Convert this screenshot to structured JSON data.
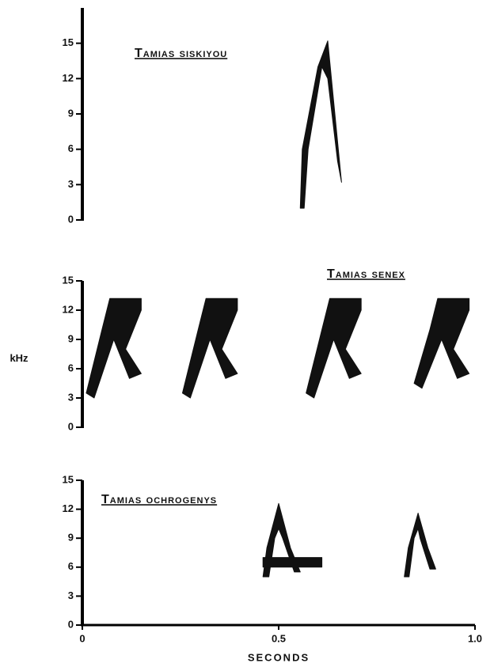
{
  "chart_data": [
    {
      "type": "spectrogram",
      "title": "Tamias siskiyou",
      "ylim": [
        0,
        18
      ],
      "yticks": [
        0,
        3,
        6,
        9,
        12,
        15
      ],
      "color": "#111111",
      "calls": [
        {
          "x": [
            0.555,
            0.56,
            0.6,
            0.625,
            0.66,
            0.65,
            0.625,
            0.61,
            0.575,
            0.565
          ],
          "y": [
            1,
            6,
            13,
            15.2,
            3.2,
            5,
            12,
            13,
            6,
            1
          ]
        }
      ]
    },
    {
      "type": "spectrogram",
      "title": "Tamias senex",
      "ylabel": "kHz",
      "ylim": [
        0,
        15
      ],
      "yticks": [
        0,
        3,
        6,
        9,
        12,
        15
      ],
      "color": "#111111",
      "calls": [
        {
          "x": [
            0.01,
            0.05,
            0.07,
            0.15,
            0.15,
            0.11,
            0.15,
            0.12,
            0.08,
            0.03
          ],
          "y": [
            3.5,
            10,
            13.2,
            13.2,
            12,
            8,
            5.5,
            5,
            9,
            3
          ]
        },
        {
          "x": [
            0.255,
            0.295,
            0.315,
            0.395,
            0.395,
            0.355,
            0.395,
            0.365,
            0.325,
            0.275
          ],
          "y": [
            3.5,
            10,
            13.2,
            13.2,
            12,
            8,
            5.5,
            5,
            9,
            3
          ]
        },
        {
          "x": [
            0.57,
            0.61,
            0.63,
            0.71,
            0.71,
            0.67,
            0.71,
            0.68,
            0.64,
            0.59
          ],
          "y": [
            3.5,
            10,
            13.2,
            13.2,
            12,
            8,
            5.5,
            5,
            9,
            3
          ]
        },
        {
          "x": [
            0.845,
            0.885,
            0.905,
            0.985,
            0.985,
            0.945,
            0.985,
            0.955,
            0.915,
            0.865
          ],
          "y": [
            4.5,
            10,
            13.2,
            13.2,
            12,
            8,
            5.5,
            5,
            9,
            4
          ]
        }
      ]
    },
    {
      "type": "spectrogram",
      "title": "Tamias ochrogenys",
      "xlabel": "SECONDS",
      "ylim": [
        0,
        15
      ],
      "yticks": [
        0,
        3,
        6,
        9,
        12,
        15
      ],
      "xlim": [
        0,
        1
      ],
      "xticks": [
        0,
        0.5,
        {
          "value": 1,
          "label": "1.0"
        }
      ],
      "color": "#111111",
      "calls": [
        {
          "x": [
            0.46,
            0.47,
            0.5,
            0.53,
            0.555,
            0.54,
            0.51,
            0.5,
            0.49,
            0.475
          ],
          "y": [
            5,
            8,
            12.6,
            8,
            5.5,
            5.5,
            9,
            10,
            9,
            5
          ]
        },
        {
          "x": [
            0.46,
            0.61,
            0.61,
            0.46
          ],
          "y": [
            7,
            7,
            6,
            6
          ]
        },
        {
          "x": [
            0.82,
            0.83,
            0.855,
            0.88,
            0.9,
            0.885,
            0.86,
            0.855,
            0.845,
            0.832
          ],
          "y": [
            5,
            8,
            11.6,
            8,
            5.8,
            5.8,
            9,
            10,
            9,
            5
          ]
        }
      ]
    }
  ]
}
